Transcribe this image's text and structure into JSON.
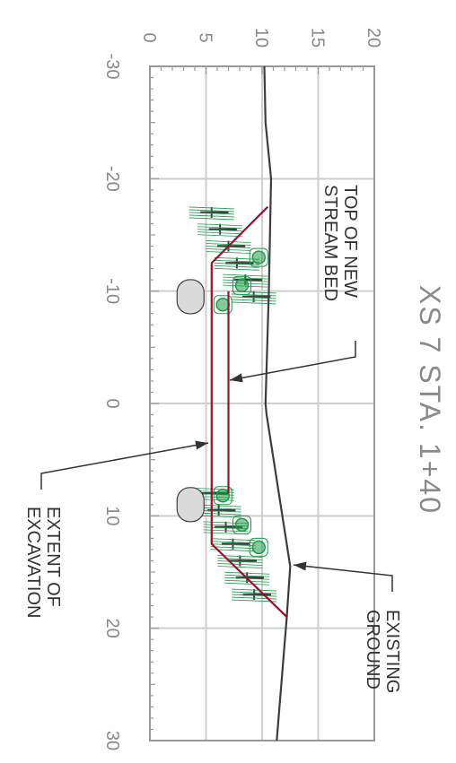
{
  "drawing": {
    "title": "XS 7  STA. 1+40",
    "x_ticks": [
      -30,
      -20,
      -10,
      0,
      10,
      20,
      30
    ],
    "x_tick_labels": [
      "-30",
      "-20",
      "-10",
      "0",
      "10",
      "20",
      "30"
    ],
    "y_ticks": [
      0,
      5,
      10,
      15,
      20
    ],
    "y_tick_labels": [
      "0",
      "5",
      "10",
      "15",
      "20"
    ],
    "callouts": {
      "top_of_bed": [
        "TOP OF NEW",
        "STREAM BED"
      ],
      "existing_ground": [
        "EXISTING",
        "GROUND"
      ],
      "extent": [
        "EXTENT OF",
        "EXCAVATION"
      ]
    },
    "colors": {
      "grid": "#cfcfcf",
      "axis": "#999999",
      "label": "#8a8a8a",
      "ground": "#3d3d3d",
      "excavation": "#9b1030",
      "planting": "#1f9a4a",
      "boulder": "#dadada",
      "leader": "#333333"
    }
  },
  "chart_data": {
    "type": "cross-section",
    "title": "XS 7  STA. 1+40",
    "x_axis": {
      "range": [
        -30,
        30
      ]
    },
    "y_axis": {
      "range": [
        0,
        20
      ]
    },
    "grid": true,
    "series": [
      {
        "name": "EXISTING GROUND",
        "points": [
          [
            -30,
            10.2
          ],
          [
            -25,
            10.3
          ],
          [
            -20,
            10.8
          ],
          [
            -10,
            10.6
          ],
          [
            0,
            10.3
          ],
          [
            1,
            10.4
          ],
          [
            14.5,
            12.5
          ],
          [
            19,
            12.2
          ],
          [
            30,
            11.3
          ]
        ]
      },
      {
        "name": "EXTENT OF EXCAVATION",
        "points": [
          [
            -17.5,
            10.5
          ],
          [
            -12.5,
            5.5
          ],
          [
            12.5,
            5.5
          ],
          [
            19,
            12.2
          ]
        ]
      },
      {
        "name": "TOP OF NEW STREAM BED",
        "points": [
          [
            -10,
            7
          ],
          [
            -8,
            7
          ],
          [
            -8,
            7
          ],
          [
            8,
            7
          ],
          [
            8,
            7
          ]
        ]
      }
    ],
    "boulders": [
      {
        "x": -9.5,
        "y": 4.5
      },
      {
        "x": 9.0,
        "y": 4.5
      }
    ]
  }
}
